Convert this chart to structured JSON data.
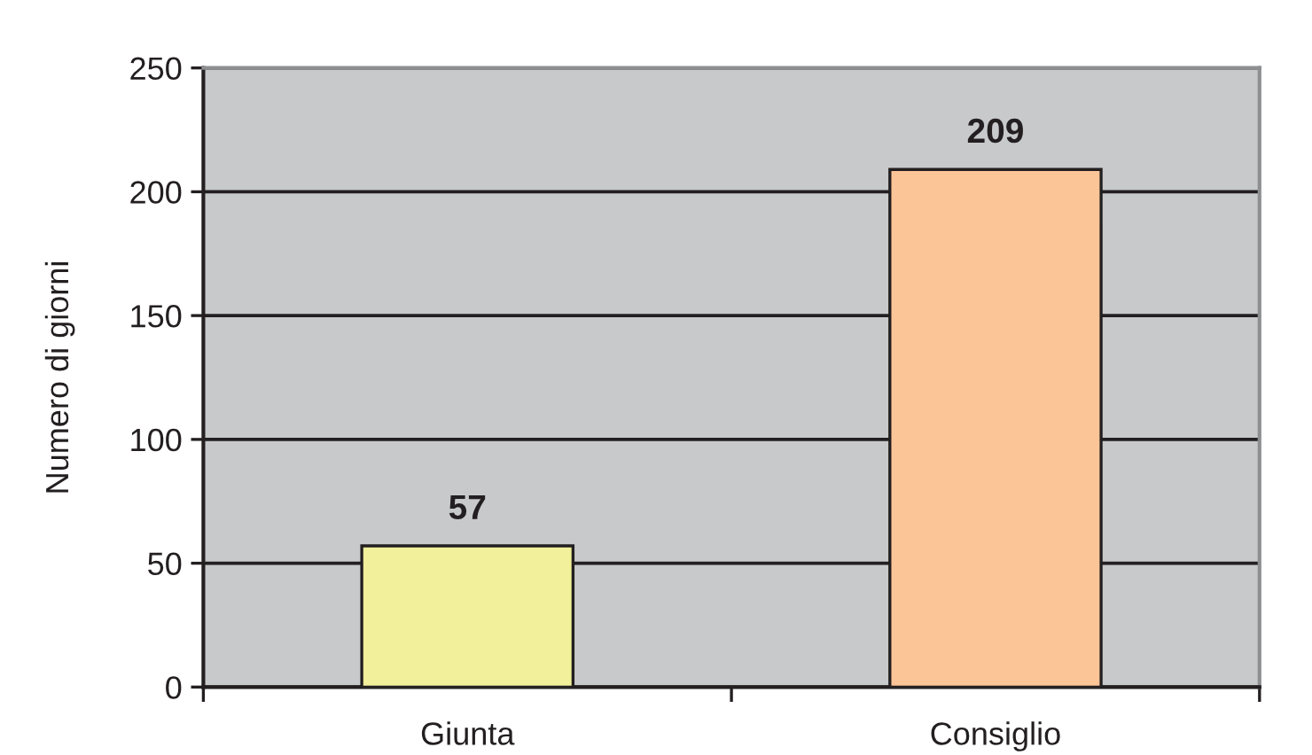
{
  "chart_data": {
    "type": "bar",
    "ylabel": "Numero di giorni",
    "categories": [
      "Giunta",
      "Consiglio"
    ],
    "values": [
      57,
      209
    ],
    "colors": [
      "#f2f09a",
      "#fbc597"
    ],
    "ylim": [
      0,
      250
    ],
    "yticks": [
      0,
      50,
      100,
      150,
      200,
      250
    ],
    "grid": "y",
    "data_labels": true
  }
}
